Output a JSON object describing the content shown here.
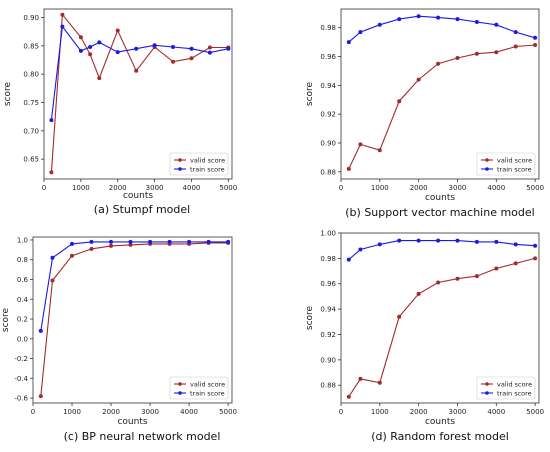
{
  "chart_data": [
    {
      "type": "line",
      "caption": "(a) Stumpf model",
      "xlabel": "counts",
      "ylabel": "score",
      "xlim": [
        0,
        5100
      ],
      "ylim": [
        0.615,
        0.915
      ],
      "xticks": [
        0,
        1000,
        2000,
        3000,
        4000,
        5000
      ],
      "yticks": [
        0.65,
        0.7,
        0.75,
        0.8,
        0.85,
        0.9
      ],
      "tick_decimals": 2,
      "legend": "lower-right",
      "x": [
        200,
        500,
        1000,
        1250,
        1500,
        2000,
        2500,
        3000,
        3500,
        4000,
        4500,
        5000
      ],
      "series": [
        {
          "name": "valid score",
          "color": "#a52a2a",
          "values": [
            0.627,
            0.905,
            0.865,
            0.835,
            0.793,
            0.877,
            0.806,
            0.848,
            0.822,
            0.828,
            0.847,
            0.847
          ]
        },
        {
          "name": "train score",
          "color": "#1a1ae6",
          "values": [
            0.719,
            0.884,
            0.841,
            0.848,
            0.856,
            0.839,
            0.845,
            0.851,
            0.848,
            0.845,
            0.838,
            0.845
          ]
        }
      ]
    },
    {
      "type": "line",
      "caption": "(b) Support vector machine model",
      "xlabel": "counts",
      "ylabel": "score",
      "xlim": [
        0,
        5100
      ],
      "ylim": [
        0.875,
        0.993
      ],
      "xticks": [
        0,
        1000,
        2000,
        3000,
        4000,
        5000
      ],
      "yticks": [
        0.88,
        0.9,
        0.92,
        0.94,
        0.96,
        0.98
      ],
      "tick_decimals": 2,
      "legend": "lower-right",
      "x": [
        200,
        500,
        1000,
        1500,
        2000,
        2500,
        3000,
        3500,
        4000,
        4500,
        5000
      ],
      "series": [
        {
          "name": "valid score",
          "color": "#a52a2a",
          "values": [
            0.882,
            0.899,
            0.895,
            0.929,
            0.944,
            0.955,
            0.959,
            0.962,
            0.963,
            0.967,
            0.968
          ]
        },
        {
          "name": "train score",
          "color": "#1a1ae6",
          "values": [
            0.97,
            0.977,
            0.982,
            0.986,
            0.988,
            0.987,
            0.986,
            0.984,
            0.982,
            0.977,
            0.973
          ]
        }
      ]
    },
    {
      "type": "line",
      "caption": "(c) BP neural network model",
      "xlabel": "counts",
      "ylabel": "score",
      "xlim": [
        0,
        5100
      ],
      "ylim": [
        -0.65,
        1.03
      ],
      "xticks": [
        0,
        1000,
        2000,
        3000,
        4000,
        5000
      ],
      "yticks": [
        -0.6,
        -0.4,
        -0.2,
        0.0,
        0.2,
        0.4,
        0.6,
        0.8,
        1.0
      ],
      "tick_decimals": 1,
      "legend": "lower-right",
      "x": [
        200,
        500,
        1000,
        1500,
        2000,
        2500,
        3000,
        3500,
        4000,
        4500,
        5000
      ],
      "series": [
        {
          "name": "valid score",
          "color": "#a52a2a",
          "values": [
            -0.58,
            0.59,
            0.84,
            0.91,
            0.94,
            0.95,
            0.96,
            0.96,
            0.96,
            0.97,
            0.97
          ]
        },
        {
          "name": "train score",
          "color": "#1a1ae6",
          "values": [
            0.08,
            0.82,
            0.96,
            0.98,
            0.98,
            0.98,
            0.98,
            0.98,
            0.98,
            0.98,
            0.98
          ]
        }
      ]
    },
    {
      "type": "line",
      "caption": "(d) Random forest model",
      "xlabel": "counts",
      "ylabel": "score",
      "xlim": [
        0,
        5100
      ],
      "ylim": [
        0.866,
        1.0
      ],
      "xticks": [
        0,
        1000,
        2000,
        3000,
        4000,
        5000
      ],
      "yticks": [
        0.88,
        0.9,
        0.92,
        0.94,
        0.96,
        0.98,
        1.0
      ],
      "tick_decimals": 2,
      "legend": "lower-right",
      "x": [
        200,
        500,
        1000,
        1500,
        2000,
        2500,
        3000,
        3500,
        4000,
        4500,
        5000
      ],
      "series": [
        {
          "name": "valid score",
          "color": "#a52a2a",
          "values": [
            0.871,
            0.885,
            0.882,
            0.934,
            0.952,
            0.961,
            0.964,
            0.966,
            0.972,
            0.976,
            0.98
          ]
        },
        {
          "name": "train score",
          "color": "#1a1ae6",
          "values": [
            0.979,
            0.987,
            0.991,
            0.994,
            0.994,
            0.994,
            0.994,
            0.993,
            0.993,
            0.991,
            0.99
          ]
        }
      ]
    }
  ]
}
